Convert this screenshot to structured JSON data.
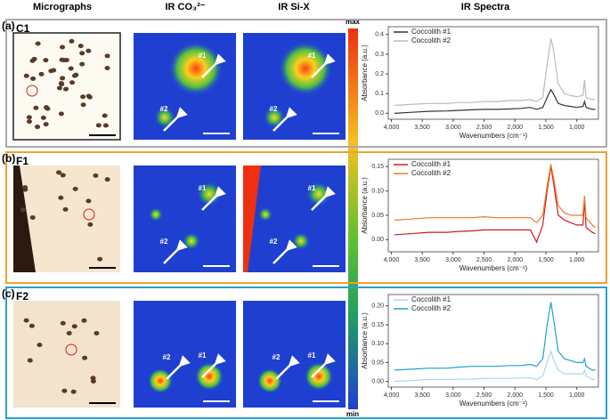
{
  "headers": [
    "Micrographs",
    "IR CO₃²⁻",
    "IR Si-X",
    "IR Spectra"
  ],
  "colorbar": {
    "max": "max",
    "min": "min"
  },
  "rows": [
    {
      "label": "(a)",
      "sample": "C1",
      "co3": [
        "#1",
        "#2"
      ],
      "six": [
        "#1",
        "#2"
      ]
    },
    {
      "label": "(b)",
      "sample": "F1",
      "co3": [
        "#1",
        "#2"
      ],
      "six": [
        "#1",
        "#2"
      ]
    },
    {
      "label": "(c)",
      "sample": "F2",
      "co3": [
        "#2",
        "#1"
      ],
      "six": [
        "#2",
        "#1"
      ]
    }
  ],
  "chart_data": [
    {
      "type": "line",
      "x_label": "Wavenumbers (cm⁻¹)",
      "y_label": "Absorbance (a.u.)",
      "x": [
        3950,
        3700,
        3400,
        3100,
        2900,
        2700,
        2500,
        2300,
        2100,
        1900,
        1750,
        1650,
        1550,
        1480,
        1420,
        1380,
        1300,
        1200,
        1100,
        1000,
        900,
        875,
        850,
        750,
        700
      ],
      "xlim": [
        4050,
        650
      ],
      "xticks": [
        {
          "value": 4000,
          "label": "4,000"
        },
        {
          "value": 3500,
          "label": "3,500"
        },
        {
          "value": 3000,
          "label": "3,000"
        },
        {
          "value": 2500,
          "label": "2,500"
        },
        {
          "value": 2000,
          "label": "2,000"
        },
        {
          "value": 1500,
          "label": "1,500"
        },
        {
          "value": 1000,
          "label": "1,000"
        }
      ],
      "ylim": [
        -0.03,
        0.44
      ],
      "yticks": [
        {
          "value": 0,
          "label": "0.0"
        },
        0.1,
        0.2,
        0.3,
        0.4
      ],
      "legend": "upper left",
      "series": [
        {
          "name": "Coccolith #1",
          "color": "#333333",
          "values": [
            0.0,
            0.005,
            0.01,
            0.012,
            0.015,
            0.018,
            0.02,
            0.02,
            0.022,
            0.025,
            0.03,
            0.02,
            0.03,
            0.08,
            0.12,
            0.1,
            0.05,
            0.04,
            0.035,
            0.03,
            0.035,
            0.06,
            0.03,
            0.02,
            0.02
          ]
        },
        {
          "name": "Coccolith #2",
          "color": "#bbbbbb",
          "values": [
            0.04,
            0.045,
            0.05,
            0.05,
            0.055,
            0.055,
            0.06,
            0.06,
            0.065,
            0.065,
            0.07,
            0.06,
            0.08,
            0.25,
            0.38,
            0.33,
            0.15,
            0.1,
            0.09,
            0.085,
            0.09,
            0.17,
            0.08,
            0.07,
            0.07
          ]
        }
      ]
    },
    {
      "type": "line",
      "x_label": "Wavenumbers (cm⁻¹)",
      "y_label": "Absorbance (a.u.)",
      "x": [
        3950,
        3700,
        3400,
        3100,
        2900,
        2700,
        2500,
        2300,
        2100,
        1900,
        1750,
        1650,
        1550,
        1480,
        1420,
        1380,
        1300,
        1200,
        1100,
        1000,
        900,
        875,
        850,
        750,
        700
      ],
      "xlim": [
        4050,
        650
      ],
      "xticks": [
        {
          "value": 4000,
          "label": "4,000"
        },
        {
          "value": 3500,
          "label": "3,500"
        },
        {
          "value": 3000,
          "label": "3,000"
        },
        {
          "value": 2500,
          "label": "2,500"
        },
        {
          "value": 2000,
          "label": "2,000"
        },
        {
          "value": 1500,
          "label": "1,500"
        },
        {
          "value": 1000,
          "label": "1,000"
        }
      ],
      "ylim": [
        -0.025,
        0.165
      ],
      "yticks": [
        {
          "value": 0,
          "label": "0.00"
        },
        0.05,
        {
          "value": 0.1,
          "label": "0.10"
        },
        0.15
      ],
      "legend": "upper left",
      "series": [
        {
          "name": "Coccolith #1",
          "color": "#cc1b1b",
          "values": [
            0.01,
            0.012,
            0.015,
            0.015,
            0.017,
            0.018,
            0.02,
            0.02,
            0.02,
            0.02,
            0.02,
            -0.005,
            0.03,
            0.1,
            0.15,
            0.12,
            0.05,
            0.04,
            0.035,
            0.03,
            0.03,
            0.08,
            0.025,
            0.015,
            0.012
          ]
        },
        {
          "name": "Coccolith #2",
          "color": "#e87a2a",
          "values": [
            0.04,
            0.042,
            0.045,
            0.045,
            0.045,
            0.045,
            0.047,
            0.045,
            0.045,
            0.045,
            0.045,
            0.035,
            0.05,
            0.11,
            0.155,
            0.13,
            0.07,
            0.055,
            0.05,
            0.05,
            0.05,
            0.09,
            0.045,
            0.03,
            0.025
          ]
        }
      ]
    },
    {
      "type": "line",
      "x_label": "Wavenumbers (cm⁻¹)",
      "y_label": "Absorbance (a.u.)",
      "x": [
        3950,
        3700,
        3400,
        3100,
        2900,
        2700,
        2500,
        2300,
        2100,
        1900,
        1750,
        1650,
        1550,
        1480,
        1420,
        1380,
        1300,
        1200,
        1100,
        1000,
        900,
        875,
        850,
        750,
        700
      ],
      "xlim": [
        4050,
        650
      ],
      "xticks": [
        {
          "value": 4000,
          "label": "4,000"
        },
        {
          "value": 3500,
          "label": "3,500"
        },
        {
          "value": 3000,
          "label": "3,000"
        },
        {
          "value": 2500,
          "label": "2,500"
        },
        {
          "value": 2000,
          "label": "2,000"
        },
        {
          "value": 1500,
          "label": "1,500"
        },
        {
          "value": 1000,
          "label": "1,000"
        }
      ],
      "ylim": [
        -0.015,
        0.23
      ],
      "yticks": [
        {
          "value": 0,
          "label": "0.00"
        },
        0.05,
        {
          "value": 0.1,
          "label": "0.10"
        },
        0.15,
        {
          "value": 0.2,
          "label": "0.20"
        }
      ],
      "legend": "upper left",
      "series": [
        {
          "name": "Coccolith #1",
          "color": "#a8d8f0",
          "values": [
            0.0,
            0.002,
            0.005,
            0.005,
            0.006,
            0.006,
            0.008,
            0.008,
            0.008,
            0.009,
            0.01,
            0.005,
            0.015,
            0.05,
            0.08,
            0.06,
            0.03,
            0.02,
            0.02,
            0.02,
            0.02,
            0.03,
            0.015,
            0.005,
            0.005
          ]
        },
        {
          "name": "Coccolith #2",
          "color": "#1ea4c8",
          "values": [
            0.03,
            0.032,
            0.035,
            0.035,
            0.038,
            0.04,
            0.04,
            0.04,
            0.042,
            0.042,
            0.045,
            0.04,
            0.06,
            0.15,
            0.21,
            0.17,
            0.08,
            0.06,
            0.055,
            0.05,
            0.05,
            0.06,
            0.04,
            0.03,
            0.03
          ]
        }
      ]
    }
  ]
}
